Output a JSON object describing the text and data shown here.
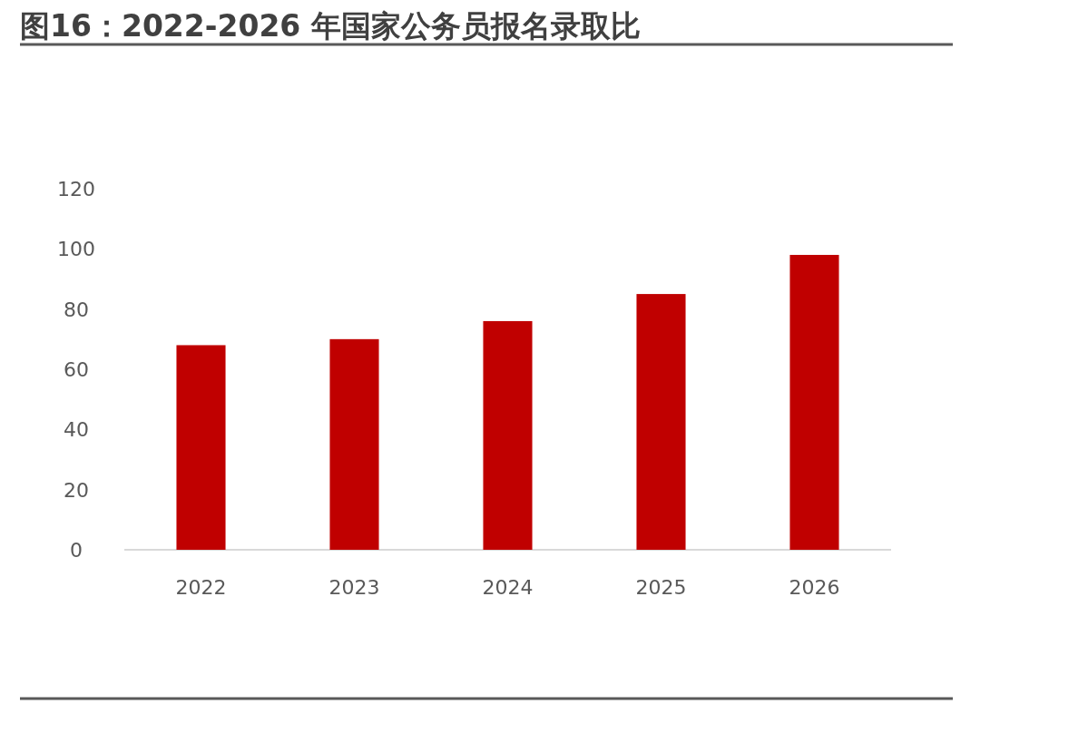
{
  "chart_data": {
    "type": "bar",
    "title": "图16：2022-2026 年国家公务员报名录取比",
    "categories": [
      "2022",
      "2023",
      "2024",
      "2025",
      "2026"
    ],
    "values": [
      68,
      70,
      76,
      85,
      98
    ],
    "color": "#c00000",
    "ylim": [
      0,
      120
    ],
    "yticks": [
      0,
      20,
      40,
      60,
      80,
      100,
      120
    ]
  }
}
